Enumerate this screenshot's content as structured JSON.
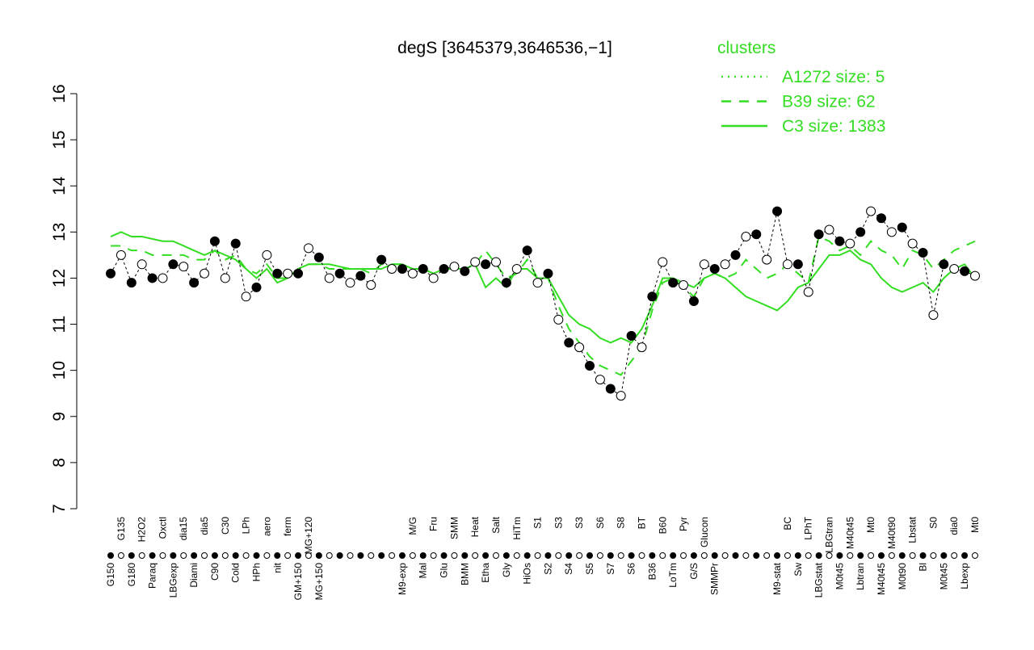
{
  "chart_data": {
    "type": "line",
    "title": "degS [3645379,3646536,−1]",
    "categories": [
      "G150",
      "G135",
      "G180",
      "H2O2",
      "Paraq",
      "Oxctl",
      "LBGexp",
      "dia15",
      "Diami",
      "dia5",
      "C90",
      "C30",
      "Cold",
      "LPh",
      "HPh",
      "aero",
      "nit",
      "ferm",
      "GM+150",
      "MG+120",
      "MG+150",
      null,
      null,
      null,
      null,
      null,
      null,
      null,
      "M9-exp",
      "M/G",
      "Mal",
      "Fru",
      "Glu",
      "SMM",
      "BMM",
      "Heat",
      "Etha",
      "Salt",
      "Gly",
      "HiTm",
      "HiOs",
      "S1",
      "S2",
      "S3",
      "S4",
      "S3",
      "S5",
      "S6",
      "S7",
      "S8",
      "S6",
      "BT",
      "B36",
      "B60",
      "LoTm",
      "Pyr",
      "G/S",
      "Glucon",
      "SMMPr",
      null,
      null,
      null,
      null,
      null,
      "M9-stat",
      "BC",
      "Sw",
      "LPhT",
      "LBGstat",
      "LBGtran",
      "M0t45",
      "M40t45",
      "Lbtran",
      "Mt0",
      "M40t45",
      "M40t90",
      "M0t90",
      "Lbstat",
      "Bl",
      "S0",
      "M0t45",
      "dia0",
      "Lbexp",
      "Mt0"
    ],
    "values": [
      12.1,
      12.5,
      11.9,
      12.3,
      12.0,
      12.0,
      12.3,
      12.25,
      11.9,
      12.1,
      12.8,
      12.0,
      12.75,
      11.6,
      11.8,
      12.5,
      12.1,
      12.1,
      12.1,
      12.65,
      12.45,
      12.0,
      12.1,
      11.9,
      12.05,
      11.85,
      12.4,
      12.2,
      12.2,
      12.1,
      12.2,
      12.0,
      12.2,
      12.25,
      12.15,
      12.35,
      12.3,
      12.35,
      11.9,
      12.2,
      12.6,
      11.9,
      12.1,
      11.1,
      10.6,
      10.5,
      10.1,
      9.8,
      9.6,
      9.45,
      10.75,
      10.5,
      11.6,
      12.35,
      11.9,
      11.85,
      11.5,
      12.3,
      12.2,
      12.3,
      12.5,
      12.9,
      12.95,
      12.4,
      13.45,
      12.3,
      12.3,
      11.7,
      12.95,
      13.05,
      12.8,
      12.75,
      13.0,
      13.45,
      13.3,
      13.0,
      13.1,
      12.75,
      12.55,
      11.2,
      12.3,
      12.2,
      12.15,
      12.05
    ],
    "legend_title": "clusters",
    "legend_color": "#33dd22",
    "series": [
      {
        "name": "A1272 size: 5",
        "color": "#33dd22",
        "linestyle": "dotted"
      },
      {
        "name": "B39 size: 62",
        "color": "#33dd22",
        "linestyle": "dashed",
        "values": [
          12.7,
          12.7,
          12.6,
          12.6,
          12.5,
          12.5,
          12.5,
          12.5,
          12.4,
          12.4,
          12.6,
          12.4,
          12.5,
          12.2,
          12.1,
          12.3,
          12.0,
          12.0,
          12.2,
          12.3,
          12.3,
          12.2,
          12.2,
          12.2,
          12.2,
          12.1,
          12.3,
          12.3,
          12.3,
          12.2,
          12.2,
          12.1,
          12.2,
          12.2,
          12.2,
          12.3,
          12.6,
          12.3,
          12.0,
          12.1,
          12.4,
          12.0,
          12.0,
          11.4,
          10.9,
          10.6,
          10.3,
          10.1,
          10.0,
          9.9,
          10.2,
          10.5,
          11.3,
          11.9,
          12.0,
          11.8,
          11.6,
          12.0,
          12.1,
          12.0,
          12.1,
          12.4,
          12.2,
          12.0,
          12.1,
          12.3,
          12.1,
          11.9,
          12.9,
          12.8,
          12.6,
          12.7,
          12.5,
          12.8,
          12.6,
          12.5,
          12.2,
          12.6,
          12.5,
          12.2,
          12.4,
          12.6,
          12.7,
          12.8
        ]
      },
      {
        "name": "C3 size: 1383",
        "color": "#33dd22",
        "linestyle": "solid",
        "values": [
          12.9,
          13.0,
          12.9,
          12.9,
          12.85,
          12.8,
          12.8,
          12.7,
          12.6,
          12.5,
          12.6,
          12.5,
          12.4,
          12.2,
          12.0,
          12.2,
          11.9,
          12.0,
          12.2,
          12.3,
          12.3,
          12.3,
          12.25,
          12.2,
          12.2,
          12.2,
          12.2,
          12.3,
          12.3,
          12.2,
          12.2,
          12.1,
          12.2,
          12.2,
          12.2,
          12.3,
          11.8,
          12.0,
          11.8,
          12.2,
          12.2,
          12.0,
          12.0,
          11.6,
          11.2,
          11.0,
          10.9,
          10.7,
          10.6,
          10.7,
          10.6,
          10.9,
          11.4,
          12.0,
          12.0,
          11.9,
          11.8,
          12.0,
          12.1,
          12.0,
          11.8,
          11.6,
          11.5,
          11.4,
          11.3,
          11.5,
          11.8,
          11.9,
          12.2,
          12.5,
          12.5,
          12.6,
          12.4,
          12.3,
          12.0,
          11.8,
          11.7,
          11.8,
          11.9,
          11.7,
          12.0,
          12.2,
          12.3,
          12.0
        ]
      }
    ],
    "ylim": [
      7,
      16
    ],
    "yticks": [
      7,
      8,
      9,
      10,
      11,
      12,
      13,
      14,
      15,
      16
    ]
  }
}
